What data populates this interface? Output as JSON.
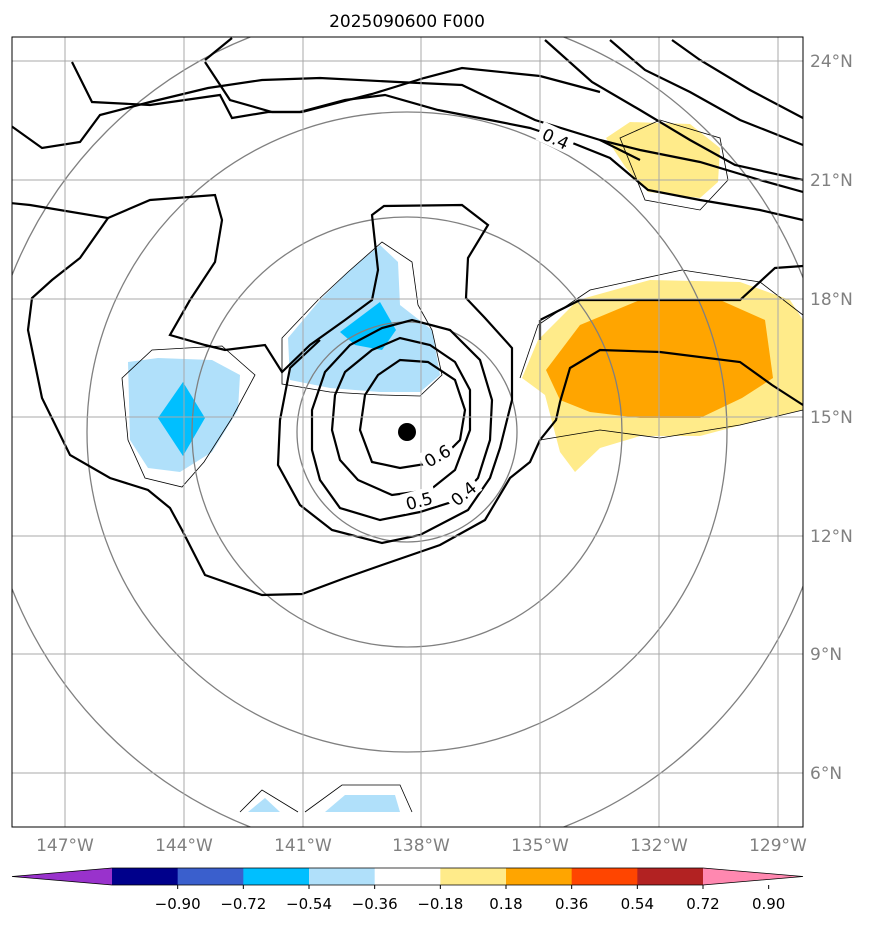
{
  "title": "2025090600 F000",
  "lon_ticks": [
    "147°W",
    "144°W",
    "141°W",
    "138°W",
    "135°W",
    "132°W",
    "129°W"
  ],
  "lat_ticks": [
    "24°N",
    "21°N",
    "18°N",
    "15°N",
    "12°N",
    "9°N",
    "6°N"
  ],
  "contour_labels": [
    "0.4",
    "0.6",
    "0.5",
    "0.4"
  ],
  "colorbar": {
    "tick_labels": [
      "−0.90",
      "−0.72",
      "−0.54",
      "−0.36",
      "−0.18",
      "0.18",
      "0.36",
      "0.54",
      "0.72",
      "0.90"
    ],
    "colors": [
      "#9932cc",
      "#00008b",
      "#3a5fcd",
      "#00bfff",
      "#b0e0fa",
      "#ffffff",
      "#ffeb8a",
      "#ffa500",
      "#ff4500",
      "#b22222",
      "#ff88b0"
    ]
  },
  "storm_center": {
    "lon": -137.8,
    "lat": 14.6
  },
  "colors": {
    "grid": "#a9a9a9",
    "range_ring": "#808080",
    "contour": "#000000",
    "tick_text": "#808080"
  }
}
